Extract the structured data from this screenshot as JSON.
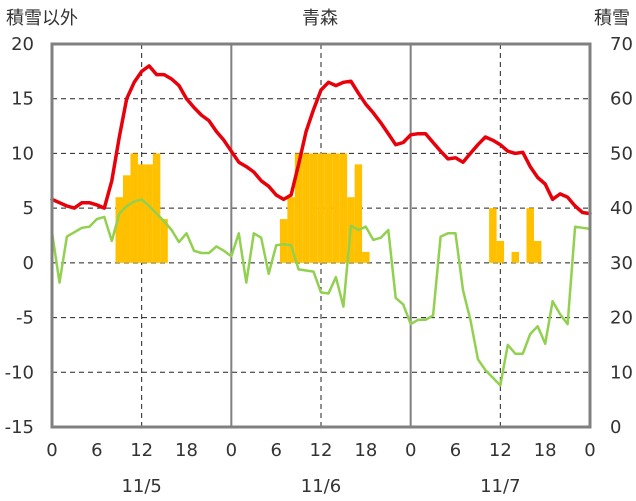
{
  "chart_data": {
    "type": "line+bar",
    "title": "青森",
    "left_axis_label": "積雪以外",
    "right_axis_label": "積雪",
    "y_left": {
      "min": -15,
      "max": 20,
      "ticks": [
        20,
        15,
        10,
        5,
        0,
        -5,
        -10,
        -15
      ]
    },
    "y_right": {
      "min": 0,
      "max": 70,
      "ticks": [
        70,
        60,
        50,
        40,
        30,
        20,
        10,
        0
      ]
    },
    "x": {
      "hours_total": 72,
      "tick_labels": [
        "0",
        "6",
        "12",
        "18",
        "0",
        "6",
        "12",
        "18",
        "0",
        "6",
        "12",
        "18",
        "0"
      ]
    },
    "day_labels": [
      "11/5",
      "11/6",
      "11/7"
    ],
    "grid": true,
    "colors": {
      "temperature": "#e8000b",
      "snowfall": "#ffc000",
      "secondary": "#92d050",
      "zero_line": "#7030a0",
      "frame": "#808080"
    },
    "series": [
      {
        "key": "temperature",
        "kind": "line",
        "axis": "left",
        "values": [
          5.8,
          5.5,
          5.2,
          5.0,
          5.5,
          5.5,
          5.3,
          5.0,
          7.5,
          11.5,
          15.0,
          16.5,
          17.5,
          18.0,
          17.2,
          17.2,
          16.8,
          16.2,
          15.0,
          14.2,
          13.5,
          13.0,
          12.0,
          11.2,
          10.2,
          9.2,
          8.8,
          8.3,
          7.5,
          7.0,
          6.2,
          5.8,
          6.2,
          9.0,
          12.0,
          14.0,
          15.8,
          16.5,
          16.2,
          16.5,
          16.6,
          15.5,
          14.5,
          13.7,
          12.8,
          11.8,
          10.8,
          11.0,
          11.7,
          11.8,
          11.8,
          11.0,
          10.2,
          9.5,
          9.6,
          9.2,
          10.0,
          10.8,
          11.5,
          11.2,
          10.8,
          10.2,
          10.0,
          10.1,
          8.8,
          7.8,
          7.2,
          5.8,
          6.3,
          6.0,
          5.2,
          4.6,
          4.5
        ]
      },
      {
        "key": "secondary",
        "kind": "line",
        "axis": "left",
        "values": [
          2.8,
          -1.8,
          2.4,
          2.8,
          3.2,
          3.3,
          4.0,
          4.2,
          2.0,
          4.5,
          5.2,
          5.6,
          5.8,
          5.2,
          4.5,
          3.8,
          3.0,
          1.9,
          2.7,
          1.1,
          0.9,
          0.9,
          1.5,
          1.1,
          0.6,
          2.7,
          -1.8,
          2.7,
          2.3,
          -1.0,
          1.6,
          1.7,
          1.6,
          -0.6,
          -0.7,
          -0.8,
          -2.7,
          -2.8,
          -1.3,
          -4.0,
          3.4,
          3.0,
          3.3,
          2.1,
          2.3,
          3.0,
          -3.2,
          -3.8,
          -5.6,
          -5.2,
          -5.2,
          -4.8,
          2.4,
          2.7,
          2.7,
          -2.5,
          -5.2,
          -8.8,
          -9.8,
          -10.5,
          -11.2,
          -7.5,
          -8.3,
          -8.3,
          -6.5,
          -5.8,
          -7.4,
          -3.5,
          -4.7,
          -5.6,
          3.3,
          3.2,
          3.1
        ]
      },
      {
        "key": "snowfall",
        "kind": "bar",
        "axis": "left",
        "values": [
          0,
          0,
          0,
          0,
          0,
          0,
          0,
          0,
          0,
          6,
          8,
          10,
          9,
          9,
          10,
          4,
          0,
          0,
          0,
          0,
          0,
          0,
          0,
          0,
          0,
          0,
          0,
          0,
          0,
          0,
          0,
          4,
          6,
          10,
          10,
          10,
          10,
          10,
          10,
          10,
          6,
          9,
          1,
          0,
          0,
          0,
          0,
          0,
          0,
          0,
          0,
          0,
          0,
          0,
          0,
          0,
          0,
          0,
          0,
          5,
          2,
          0,
          1,
          0,
          5,
          2,
          0,
          0,
          0,
          0,
          0,
          0,
          0
        ]
      },
      {
        "key": "snow_depth",
        "kind": "line",
        "axis": "right",
        "values": [
          0,
          0,
          0,
          0,
          0,
          0,
          0,
          0,
          0,
          0,
          0,
          0,
          0,
          0,
          0,
          0,
          0,
          0,
          0,
          0,
          0,
          0,
          0,
          0,
          0,
          0,
          0,
          0,
          0,
          0,
          0,
          0,
          0,
          0,
          0,
          0,
          0,
          0,
          0,
          0,
          0,
          0,
          0,
          0,
          0,
          0,
          0,
          0,
          0,
          0,
          0,
          0,
          0,
          0,
          0,
          0,
          0,
          0,
          0,
          0,
          0,
          0,
          0,
          0,
          0,
          0,
          0,
          0,
          0,
          0,
          0,
          0,
          0
        ]
      }
    ]
  }
}
